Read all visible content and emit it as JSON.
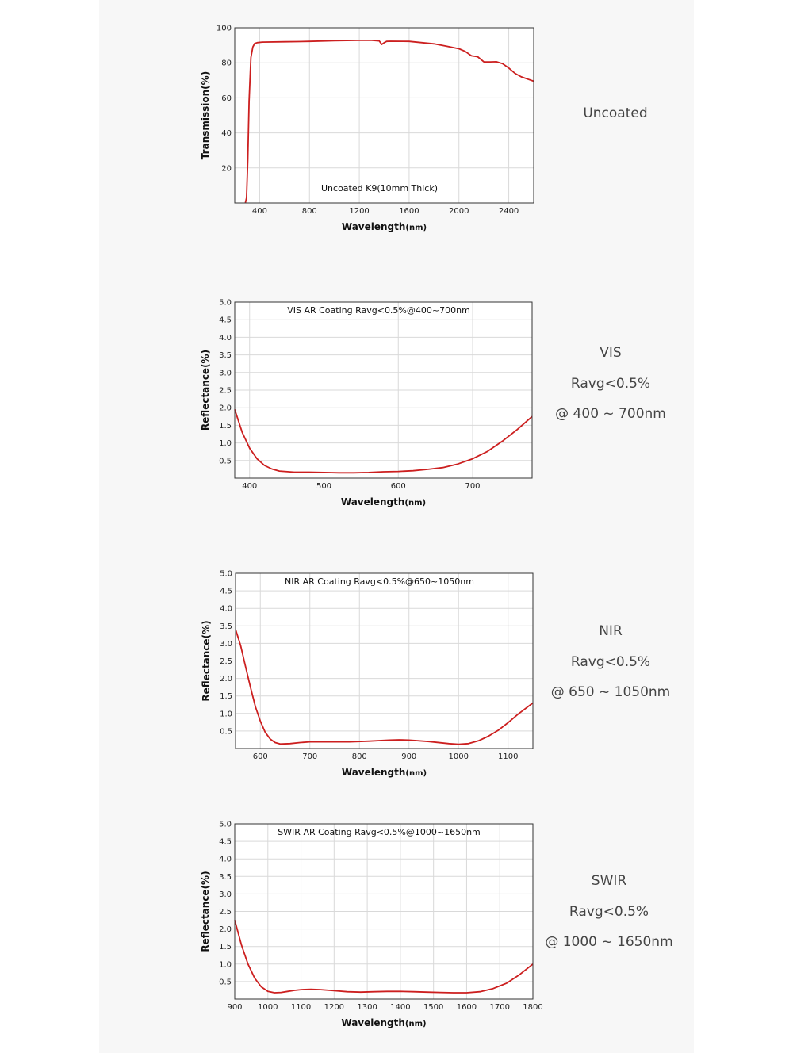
{
  "colors": {
    "page": "#ffffff",
    "panel": "#f7f7f7",
    "curve": "#cc1f1f",
    "grid": "#d9d9d9",
    "frame": "#333333",
    "caption": "#444444"
  },
  "rows": [
    {
      "caption": [
        "Uncoated"
      ]
    },
    {
      "caption": [
        "VIS",
        "Ravg<0.5%",
        "@ 400 ~ 700nm"
      ]
    },
    {
      "caption": [
        "NIR",
        "Ravg<0.5%",
        "@ 650 ~ 1050nm"
      ]
    },
    {
      "caption": [
        "SWIR",
        "Ravg<0.5%",
        "@ 1000 ~ 1650nm"
      ]
    }
  ],
  "chart_data": [
    {
      "type": "line",
      "title": "Uncoated K9(10mm Thick)",
      "xlabel": "Wavelength",
      "xlabel_unit": "(nm)",
      "ylabel": "Transmission(%)",
      "xlim": [
        200,
        2600
      ],
      "ylim": [
        0,
        100
      ],
      "xticks": [
        400,
        800,
        1200,
        1600,
        2000,
        2400
      ],
      "xtick_labels": [
        "400",
        "800",
        "1200",
        "1600",
        "2000",
        "2400"
      ],
      "yticks": [
        20,
        40,
        60,
        80,
        100
      ],
      "ytick_labels": [
        "20",
        "40",
        "60",
        "80",
        "100"
      ],
      "xgrid": [
        400,
        800,
        1200,
        1600,
        2000,
        2400
      ],
      "ygrid": [
        20,
        40,
        60,
        80
      ],
      "grid": true,
      "series": [
        {
          "x": [
            285,
            295,
            305,
            315,
            330,
            345,
            360,
            380,
            420,
            600,
            700,
            800,
            1000,
            1200,
            1300,
            1360,
            1380,
            1400,
            1420,
            1450,
            1600,
            1800,
            1900,
            2000,
            2050,
            2100,
            2150,
            2200,
            2250,
            2300,
            2350,
            2400,
            2450,
            2500,
            2560,
            2600
          ],
          "y": [
            0,
            3,
            25,
            58,
            83,
            89,
            91,
            91.5,
            91.8,
            92,
            92.1,
            92.2,
            92.6,
            92.8,
            92.8,
            92.5,
            90.5,
            91.5,
            92.2,
            92.3,
            92.2,
            90.8,
            89.5,
            88,
            86.5,
            84,
            83.5,
            80.5,
            80.5,
            80.6,
            79.5,
            77,
            74,
            72,
            70.5,
            69.5
          ]
        }
      ]
    },
    {
      "type": "line",
      "title": "VIS AR Coating Ravg<0.5%@400~700nm",
      "xlabel": "Wavelength",
      "xlabel_unit": "(nm)",
      "ylabel": "Reflectance(%)",
      "xlim": [
        380,
        780
      ],
      "ylim": [
        0,
        5
      ],
      "xticks": [
        400,
        500,
        600,
        700
      ],
      "xtick_labels": [
        "400",
        "500",
        "600",
        "700"
      ],
      "yticks": [
        0.5,
        1.0,
        1.5,
        2.0,
        2.5,
        3.0,
        3.5,
        4.0,
        4.5,
        5.0
      ],
      "ytick_labels": [
        "0.5",
        "1.0",
        "1.5",
        "2.0",
        "2.5",
        "3.0",
        "3.5",
        "4.0",
        "4.5",
        "5.0"
      ],
      "xgrid": [
        400,
        500,
        600,
        700
      ],
      "ygrid": [
        0.5,
        1.0,
        1.5,
        2.0,
        2.5,
        3.0,
        3.5,
        4.0,
        4.5
      ],
      "grid": true,
      "series": [
        {
          "x": [
            380,
            390,
            400,
            410,
            420,
            430,
            440,
            460,
            480,
            500,
            520,
            540,
            560,
            580,
            600,
            620,
            640,
            660,
            680,
            700,
            720,
            740,
            760,
            780
          ],
          "y": [
            1.95,
            1.3,
            0.85,
            0.55,
            0.36,
            0.26,
            0.2,
            0.17,
            0.17,
            0.16,
            0.15,
            0.15,
            0.16,
            0.18,
            0.19,
            0.21,
            0.25,
            0.3,
            0.4,
            0.55,
            0.76,
            1.05,
            1.38,
            1.75
          ]
        }
      ]
    },
    {
      "type": "line",
      "title": "NIR AR Coating Ravg<0.5%@650~1050nm",
      "xlabel": "Wavelength",
      "xlabel_unit": "(nm)",
      "ylabel": "Reflectance(%)",
      "xlim": [
        550,
        1150
      ],
      "ylim": [
        0,
        5
      ],
      "xticks": [
        600,
        700,
        800,
        900,
        1000,
        1100
      ],
      "xtick_labels": [
        "600",
        "700",
        "800",
        "900",
        "1000",
        "1100"
      ],
      "xgrid": [
        600,
        700,
        800,
        900,
        1000,
        1100
      ],
      "yticks": [
        0.5,
        1.0,
        1.5,
        2.0,
        2.5,
        3.0,
        3.5,
        4.0,
        4.5,
        5.0
      ],
      "ytick_labels": [
        "0.5",
        "1.0",
        "1.5",
        "2.0",
        "2.5",
        "3.0",
        "3.5",
        "4.0",
        "4.5",
        "5.0"
      ],
      "ygrid": [
        0.5,
        1.0,
        1.5,
        2.0,
        2.5,
        3.0,
        3.5,
        4.0,
        4.5
      ],
      "grid": true,
      "series": [
        {
          "x": [
            550,
            560,
            570,
            580,
            590,
            600,
            610,
            620,
            630,
            640,
            660,
            680,
            700,
            740,
            780,
            820,
            860,
            880,
            900,
            940,
            980,
            1000,
            1020,
            1040,
            1060,
            1080,
            1100,
            1120,
            1150
          ],
          "y": [
            3.4,
            2.95,
            2.35,
            1.75,
            1.2,
            0.78,
            0.46,
            0.27,
            0.17,
            0.13,
            0.14,
            0.17,
            0.19,
            0.19,
            0.19,
            0.21,
            0.24,
            0.25,
            0.24,
            0.2,
            0.14,
            0.12,
            0.14,
            0.22,
            0.35,
            0.52,
            0.74,
            0.98,
            1.3
          ]
        }
      ]
    },
    {
      "type": "line",
      "title": "SWIR AR Coating Ravg<0.5%@1000~1650nm",
      "xlabel": "Wavelength",
      "xlabel_unit": "(nm)",
      "ylabel": "Reflectance(%)",
      "xlim": [
        900,
        1800
      ],
      "ylim": [
        0,
        5
      ],
      "xticks": [
        900,
        1000,
        1100,
        1200,
        1300,
        1400,
        1500,
        1600,
        1700,
        1800
      ],
      "xtick_labels": [
        "900",
        "1000",
        "1100",
        "1200",
        "1300",
        "1400",
        "1500",
        "1600",
        "1700",
        "1800"
      ],
      "xgrid": [
        1000,
        1100,
        1200,
        1300,
        1400,
        1500,
        1600,
        1700
      ],
      "yticks": [
        0.5,
        1.0,
        1.5,
        2.0,
        2.5,
        3.0,
        3.5,
        4.0,
        4.5,
        5.0
      ],
      "ytick_labels": [
        "0.5",
        "1.0",
        "1.5",
        "2.0",
        "2.5",
        "3.0",
        "3.5",
        "4.0",
        "4.5",
        "5.0"
      ],
      "ygrid": [
        0.5,
        1.0,
        1.5,
        2.0,
        2.5,
        3.0,
        3.5,
        4.0,
        4.5
      ],
      "grid": true,
      "series": [
        {
          "x": [
            900,
            920,
            940,
            960,
            980,
            1000,
            1020,
            1040,
            1060,
            1080,
            1100,
            1130,
            1160,
            1200,
            1240,
            1280,
            1320,
            1360,
            1400,
            1440,
            1480,
            1520,
            1560,
            1600,
            1640,
            1680,
            1720,
            1760,
            1800
          ],
          "y": [
            2.25,
            1.55,
            1.0,
            0.6,
            0.35,
            0.22,
            0.18,
            0.19,
            0.22,
            0.25,
            0.27,
            0.28,
            0.27,
            0.24,
            0.21,
            0.2,
            0.21,
            0.22,
            0.22,
            0.21,
            0.2,
            0.19,
            0.18,
            0.18,
            0.21,
            0.3,
            0.45,
            0.7,
            1.0
          ]
        }
      ]
    }
  ]
}
